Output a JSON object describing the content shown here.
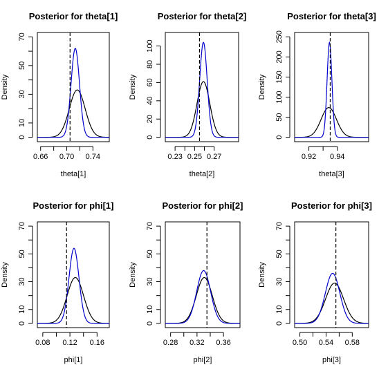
{
  "chart_data": [
    {
      "type": "line",
      "title": "Posterior for theta[1]",
      "xlabel": "theta[1]",
      "ylabel": "Density",
      "xlim": [
        0.655,
        0.765
      ],
      "ylim": [
        0,
        70
      ],
      "x_ticks": [
        0.66,
        0.7,
        0.74
      ],
      "x_tick_labels": [
        "0.66",
        "0.70",
        "0.74"
      ],
      "y_ticks": [
        0,
        10,
        30,
        50,
        70
      ],
      "y_tick_labels": [
        "0",
        "10",
        "30",
        "50",
        "70"
      ],
      "y_minor_ticks": [
        20,
        40,
        60
      ],
      "true_value": 0.705,
      "series": [
        {
          "role": "black-curve",
          "color": "#000000",
          "mean": 0.716,
          "peak": 33
        },
        {
          "role": "blue-curve",
          "color": "#0000cc",
          "mean": 0.713,
          "peak": 62
        }
      ]
    },
    {
      "type": "line",
      "title": "Posterior for theta[2]",
      "xlabel": "theta[2]",
      "ylabel": "Density",
      "xlim": [
        0.22,
        0.295
      ],
      "ylim": [
        0,
        110
      ],
      "x_ticks": [
        0.23,
        0.25,
        0.27
      ],
      "x_tick_labels": [
        "0.23",
        "0.25",
        "0.27"
      ],
      "y_ticks": [
        0,
        20,
        40,
        60,
        80,
        100
      ],
      "y_tick_labels": [
        "0",
        "20",
        "40",
        "60",
        "80",
        "100"
      ],
      "y_minor_ticks": [],
      "true_value": 0.255,
      "series": [
        {
          "role": "black-curve",
          "color": "#000000",
          "mean": 0.259,
          "peak": 61
        },
        {
          "role": "blue-curve",
          "color": "#0000cc",
          "mean": 0.259,
          "peak": 104
        }
      ]
    },
    {
      "type": "line",
      "title": "Posterior for theta[3]",
      "xlabel": "theta[3]",
      "ylabel": "Density",
      "xlim": [
        0.91,
        0.962
      ],
      "ylim": [
        0,
        250
      ],
      "x_ticks": [
        0.92,
        0.94
      ],
      "x_tick_labels": [
        "0.92",
        "0.94"
      ],
      "y_ticks": [
        0,
        50,
        100,
        150,
        200,
        250
      ],
      "y_tick_labels": [
        "0",
        "50",
        "100",
        "150",
        "200",
        "250"
      ],
      "y_minor_ticks": [],
      "true_value": 0.935,
      "series": [
        {
          "role": "black-curve",
          "color": "#000000",
          "mean": 0.934,
          "peak": 74
        },
        {
          "role": "blue-curve",
          "color": "#0000cc",
          "mean": 0.9345,
          "peak": 236
        }
      ]
    },
    {
      "type": "line",
      "title": "Posterior for phi[1]",
      "xlabel": "phi[1]",
      "ylabel": "Density",
      "xlim": [
        0.072,
        0.178
      ],
      "ylim": [
        0,
        70
      ],
      "x_ticks": [
        0.08,
        0.12,
        0.16
      ],
      "x_tick_labels": [
        "0.08",
        "0.12",
        "0.16"
      ],
      "y_ticks": [
        0,
        10,
        30,
        50,
        70
      ],
      "y_tick_labels": [
        "0",
        "10",
        "30",
        "50",
        "70"
      ],
      "y_minor_ticks": [
        20,
        40,
        60
      ],
      "true_value": 0.115,
      "series": [
        {
          "role": "black-curve",
          "color": "#000000",
          "mean": 0.128,
          "peak": 33
        },
        {
          "role": "blue-curve",
          "color": "#0000cc",
          "mean": 0.126,
          "peak": 54
        }
      ]
    },
    {
      "type": "line",
      "title": "Posterior for phi[2]",
      "xlabel": "phi[2]",
      "ylabel": "Density",
      "xlim": [
        0.272,
        0.385
      ],
      "ylim": [
        0,
        70
      ],
      "x_ticks": [
        0.28,
        0.32,
        0.36
      ],
      "x_tick_labels": [
        "0.28",
        "0.32",
        "0.36"
      ],
      "y_ticks": [
        0,
        10,
        30,
        50,
        70
      ],
      "y_tick_labels": [
        "0",
        "10",
        "30",
        "50",
        "70"
      ],
      "y_minor_ticks": [
        20,
        40,
        60
      ],
      "true_value": 0.335,
      "series": [
        {
          "role": "black-curve",
          "color": "#000000",
          "mean": 0.331,
          "peak": 33
        },
        {
          "role": "blue-curve",
          "color": "#0000cc",
          "mean": 0.33,
          "peak": 38
        }
      ]
    },
    {
      "type": "line",
      "title": "Posterior for phi[3]",
      "xlabel": "phi[3]",
      "ylabel": "Density",
      "xlim": [
        0.492,
        0.605
      ],
      "ylim": [
        0,
        70
      ],
      "x_ticks": [
        0.5,
        0.54,
        0.58
      ],
      "x_tick_labels": [
        "0.50",
        "0.54",
        "0.58"
      ],
      "y_ticks": [
        0,
        10,
        30,
        50,
        70
      ],
      "y_tick_labels": [
        "0",
        "10",
        "30",
        "50",
        "70"
      ],
      "y_minor_ticks": [
        20,
        40,
        60
      ],
      "true_value": 0.555,
      "series": [
        {
          "role": "black-curve",
          "color": "#000000",
          "mean": 0.553,
          "peak": 29
        },
        {
          "role": "blue-curve",
          "color": "#0000cc",
          "mean": 0.55,
          "peak": 36
        }
      ]
    }
  ]
}
